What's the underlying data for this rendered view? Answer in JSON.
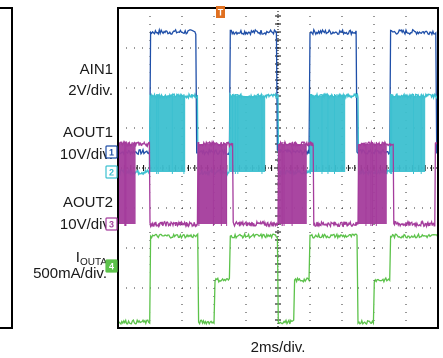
{
  "chart_data": {
    "type": "line",
    "xlabel": "2ms/div.",
    "x_divisions": 10,
    "y_divisions": 8,
    "grid": true,
    "trigger_marker": "T",
    "series": [
      {
        "name": "AIN1",
        "scale": "2V/div.",
        "marker": "1",
        "color": "#1f4fa8",
        "baseline_div": 4.4,
        "high_div": 7.4,
        "pulses_div": [
          [
            1.0,
            2.45
          ],
          [
            3.5,
            4.95
          ],
          [
            6.0,
            7.45
          ],
          [
            8.5,
            9.95
          ]
        ]
      },
      {
        "name": "AOUT1",
        "scale": "10V/div.",
        "marker": "2",
        "color": "#3cc0d0",
        "baseline_div": 3.9,
        "high_div": 5.8,
        "burst_div": [
          [
            1.0,
            2.1
          ],
          [
            3.5,
            4.6
          ],
          [
            6.0,
            7.1
          ],
          [
            8.5,
            9.6
          ]
        ],
        "steady_div": [
          [
            2.1,
            2.5
          ],
          [
            4.6,
            5.0
          ],
          [
            7.1,
            7.5
          ],
          [
            9.6,
            10.0
          ]
        ]
      },
      {
        "name": "AOUT2",
        "scale": "10V/div.",
        "marker": "3",
        "color": "#a43c9c",
        "baseline_div": 2.6,
        "high_div": 4.6,
        "burst_div": [
          [
            0.0,
            0.55
          ],
          [
            2.5,
            3.4
          ],
          [
            5.0,
            5.9
          ],
          [
            7.5,
            8.4
          ]
        ],
        "steady_div": [
          [
            0.55,
            1.0
          ],
          [
            3.4,
            3.6
          ],
          [
            5.9,
            6.1
          ],
          [
            8.4,
            8.6
          ],
          [
            9.9,
            10.0
          ]
        ]
      },
      {
        "name": "I",
        "name_sub": "OUTA",
        "scale": "500mA/div.",
        "marker": "4",
        "color": "#5cc24a",
        "levels_div": [
          [
            0.0,
            0.15
          ],
          [
            1.0,
            2.3
          ],
          [
            2.5,
            0.15
          ],
          [
            3.0,
            1.2
          ],
          [
            3.5,
            2.3
          ],
          [
            5.0,
            0.15
          ],
          [
            5.5,
            1.2
          ],
          [
            6.0,
            2.3
          ],
          [
            7.5,
            0.15
          ],
          [
            8.0,
            1.2
          ],
          [
            8.5,
            2.3
          ],
          [
            10.0,
            0.15
          ]
        ]
      }
    ]
  }
}
